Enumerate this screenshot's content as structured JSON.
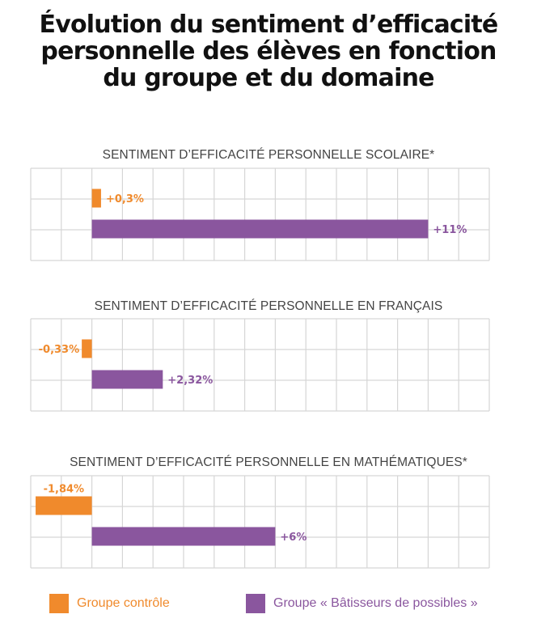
{
  "title_lines": [
    "Évolution du sentiment d’efficacité",
    "personnelle des élèves en fonction",
    "du groupe et du domaine"
  ],
  "colors": {
    "control": "#F08A2C",
    "batisseurs": "#8A569E",
    "grid": "#D6D6D6"
  },
  "legend": [
    {
      "name": "Groupe contrôle",
      "color": "#F08A2C"
    },
    {
      "name": "Groupe « Bâtisseurs de possibles »",
      "color": "#8A569E"
    }
  ],
  "chart_data": [
    {
      "type": "bar",
      "orientation": "horizontal",
      "title": "SENTIMENT D’EFFICACITÉ PERSONNELLE SCOLAIRE*",
      "categories": [
        "Groupe contrôle",
        "Groupe « Bâtisseurs de possibles »"
      ],
      "values": [
        0.3,
        11
      ],
      "labels": [
        "+0,3%",
        "+11%"
      ],
      "xlim": [
        -2,
        13
      ],
      "grid": true
    },
    {
      "type": "bar",
      "orientation": "horizontal",
      "title": "SENTIMENT D’EFFICACITÉ PERSONNELLE EN FRANÇAIS",
      "categories": [
        "Groupe contrôle",
        "Groupe « Bâtisseurs de possibles »"
      ],
      "values": [
        -0.33,
        2.32
      ],
      "labels": [
        "-0,33%",
        "+2,32%"
      ],
      "xlim": [
        -2,
        13
      ],
      "grid": true
    },
    {
      "type": "bar",
      "orientation": "horizontal",
      "title": "SENTIMENT D’EFFICACITÉ PERSONNELLE EN MATHÉMATIQUES*",
      "categories": [
        "Groupe contrôle",
        "Groupe « Bâtisseurs de possibles »"
      ],
      "values": [
        -1.84,
        6
      ],
      "labels": [
        "-1,84%",
        "+6%"
      ],
      "xlim": [
        -2,
        13
      ],
      "grid": true
    }
  ]
}
